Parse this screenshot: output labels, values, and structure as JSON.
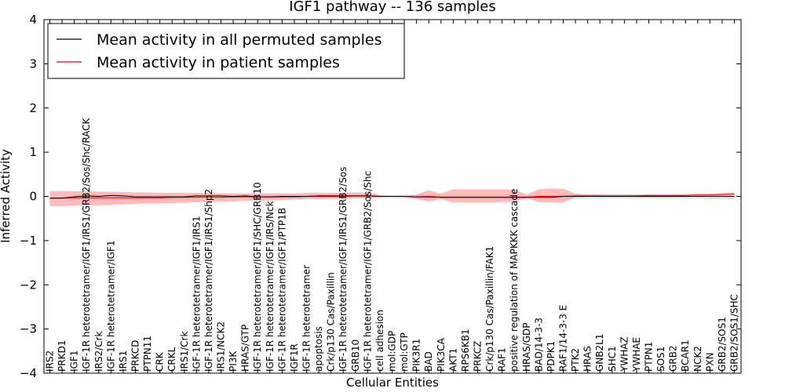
{
  "chart_data": {
    "type": "line",
    "title": "IGF1 pathway -- 136 samples",
    "xlabel": "Cellular Entities",
    "ylabel": "Inferred Activity",
    "ylim": [
      -4,
      4
    ],
    "yticks": [
      {
        "value": -4,
        "label": "−4"
      },
      {
        "value": -3,
        "label": "−3"
      },
      {
        "value": -2,
        "label": "−2"
      },
      {
        "value": -1,
        "label": "−1"
      },
      {
        "value": 0,
        "label": "0"
      },
      {
        "value": 1,
        "label": "1"
      },
      {
        "value": 2,
        "label": "2"
      },
      {
        "value": 3,
        "label": "3"
      },
      {
        "value": 4,
        "label": "4"
      }
    ],
    "grid": false,
    "legend_position": "top-left",
    "colors": {
      "permuted": "#000000",
      "patient": "#ff0000",
      "patient_band": "#ff8c8c",
      "permuted_band": "#c8c8d2"
    },
    "categories": [
      "IRS2",
      "PRKD1",
      "IGF1",
      "IGF-1R heterotetramer/IGF1/IRS1/GRB2/Sos/Shc/RACK",
      "IRS2/Crk",
      "IGF-1R heterotetramer/IGF1",
      "IRS1",
      "PRKCD",
      "PTPN11",
      "CRK",
      "CRKL",
      "IRS1/Crk",
      "IGF-1R heterotetramer/IGF1/IRS1",
      "IGF-1R heterotetramer/IGF1/IRS1/Shp2",
      "IRS1/NCK2",
      "PI3K",
      "HRAS/GTP",
      "IGF-1R heterotetramer/IGF1/SHC/GRB10",
      "IGF-1R heterotetramer/IGF1/IRS/Nck",
      "IGF-1R heterotetramer/IGF1/PTP1B",
      "IGF1R",
      "IGF-1R heterotetramer",
      "apoptosis",
      "Crk/p130 Cas/Paxillin",
      "IGF-1R heterotetramer/IGF1/IRS1/GRB2/Sos",
      "GRB10",
      "IGF-1R heterotetramer/IGF1/GRB2/Sos/Shc",
      "cell adhesion",
      "mol:GDP",
      "mol:GTP",
      "PIK3R1",
      "BAD",
      "PIK3CA",
      "AKT1",
      "RPS6KB1",
      "PRKCZ",
      "Crk/p130 Cas/Paxillin/FAK1",
      "RAF1",
      "positive regulation of MAPKKK cascade",
      "HRAS/GDP",
      "BAD/14-3-3",
      "PDPK1",
      "RAF1/14-3-3 E",
      "PTK2",
      "HRAS",
      "GNB2L1",
      "SHC1",
      "YWHAZ",
      "YWHAE",
      "PTPN1",
      "SOS1",
      "GRB2",
      "BCAR1",
      "NCK2",
      "PXN",
      "GRB2/SOS1",
      "GRB2/SOS1/SHC"
    ],
    "series": [
      {
        "name": "Mean activity in all permuted samples",
        "values": [
          -0.04,
          -0.04,
          -0.01,
          0.01,
          0.0,
          0.02,
          0.01,
          -0.01,
          -0.01,
          -0.01,
          -0.01,
          -0.01,
          0.01,
          0.01,
          0.01,
          0.0,
          0.01,
          -0.01,
          -0.01,
          0.0,
          0.0,
          0.0,
          0.01,
          0.01,
          0.01,
          0.01,
          0.01,
          0.0,
          0.0,
          0.0,
          -0.01,
          -0.01,
          -0.02,
          -0.02,
          -0.02,
          -0.02,
          -0.02,
          -0.02,
          -0.02,
          -0.02,
          -0.02,
          -0.02,
          0.0,
          0.0,
          0.0,
          0.0,
          0.0,
          0.0,
          0.0,
          0.0,
          0.0,
          0.0,
          0.0,
          0.0,
          0.0,
          0.0,
          0.0
        ],
        "lower": [
          -0.06,
          -0.06,
          -0.04,
          -0.03,
          -0.04,
          -0.03,
          -0.03,
          -0.05,
          -0.05,
          -0.05,
          -0.05,
          -0.05,
          -0.03,
          -0.03,
          -0.03,
          -0.04,
          -0.03,
          -0.05,
          -0.05,
          -0.04,
          -0.04,
          -0.04,
          -0.03,
          -0.03,
          -0.03,
          -0.03,
          -0.03,
          -0.04,
          -0.04,
          -0.05,
          -0.06,
          -0.06,
          -0.06,
          -0.06,
          -0.06,
          -0.06,
          -0.06,
          -0.06,
          -0.06,
          -0.06,
          -0.06,
          -0.06,
          -0.05,
          -0.05,
          -0.05,
          -0.05,
          -0.05,
          -0.05,
          -0.05,
          -0.05,
          -0.05,
          -0.05,
          -0.05,
          -0.05,
          -0.06,
          -0.06,
          -0.07
        ],
        "upper": [
          -0.02,
          -0.02,
          0.02,
          0.04,
          0.03,
          0.05,
          0.04,
          0.02,
          0.02,
          0.02,
          0.02,
          0.02,
          0.04,
          0.04,
          0.04,
          0.03,
          0.04,
          0.02,
          0.02,
          0.03,
          0.03,
          0.03,
          0.04,
          0.04,
          0.04,
          0.04,
          0.04,
          0.03,
          0.03,
          0.04,
          0.04,
          0.04,
          0.03,
          0.03,
          0.03,
          0.03,
          0.03,
          0.03,
          0.03,
          0.03,
          0.03,
          0.03,
          0.05,
          0.05,
          0.05,
          0.05,
          0.05,
          0.05,
          0.05,
          0.05,
          0.05,
          0.05,
          0.05,
          0.05,
          0.06,
          0.06,
          0.07
        ]
      },
      {
        "name": "Mean activity in patient samples",
        "values": [
          -0.04,
          -0.04,
          -0.03,
          -0.03,
          -0.03,
          -0.03,
          -0.03,
          -0.03,
          -0.03,
          -0.03,
          -0.02,
          -0.02,
          -0.02,
          -0.02,
          -0.02,
          -0.01,
          -0.01,
          -0.01,
          -0.01,
          -0.01,
          -0.01,
          0.0,
          0.0,
          0.0,
          0.0,
          0.01,
          0.01,
          0.0,
          0.0,
          0.0,
          -0.01,
          0.0,
          -0.02,
          -0.02,
          -0.02,
          -0.02,
          -0.02,
          -0.02,
          -0.02,
          -0.02,
          0.0,
          0.0,
          0.0,
          0.01,
          0.01,
          0.01,
          0.01,
          0.01,
          0.01,
          0.02,
          0.02,
          0.02,
          0.02,
          0.03,
          0.03,
          0.04,
          0.05
        ],
        "lower": [
          -0.22,
          -0.22,
          -0.21,
          -0.2,
          -0.2,
          -0.19,
          -0.18,
          -0.17,
          -0.16,
          -0.16,
          -0.15,
          -0.14,
          -0.13,
          -0.13,
          -0.12,
          -0.11,
          -0.1,
          -0.1,
          -0.09,
          -0.08,
          -0.07,
          -0.06,
          -0.06,
          -0.05,
          -0.05,
          -0.04,
          -0.04,
          -0.02,
          0.0,
          0.0,
          -0.05,
          -0.12,
          -0.06,
          -0.14,
          -0.14,
          -0.14,
          -0.14,
          -0.13,
          -0.12,
          -0.04,
          -0.13,
          -0.14,
          -0.14,
          -0.02,
          -0.01,
          0.0,
          0.0,
          0.0,
          0.0,
          0.01,
          0.01,
          0.01,
          0.01,
          0.02,
          0.02,
          0.03,
          0.04
        ],
        "upper": [
          0.12,
          0.12,
          0.12,
          0.11,
          0.11,
          0.1,
          0.1,
          0.09,
          0.09,
          0.08,
          0.08,
          0.08,
          0.08,
          0.08,
          0.07,
          0.07,
          0.07,
          0.07,
          0.07,
          0.07,
          0.07,
          0.08,
          0.08,
          0.08,
          0.09,
          0.09,
          0.09,
          0.03,
          0.0,
          0.0,
          0.04,
          0.14,
          0.06,
          0.16,
          0.16,
          0.16,
          0.16,
          0.16,
          0.15,
          0.04,
          0.16,
          0.18,
          0.17,
          0.06,
          0.05,
          0.04,
          0.04,
          0.04,
          0.04,
          0.05,
          0.05,
          0.05,
          0.05,
          0.06,
          0.06,
          0.08,
          0.09
        ]
      }
    ]
  }
}
